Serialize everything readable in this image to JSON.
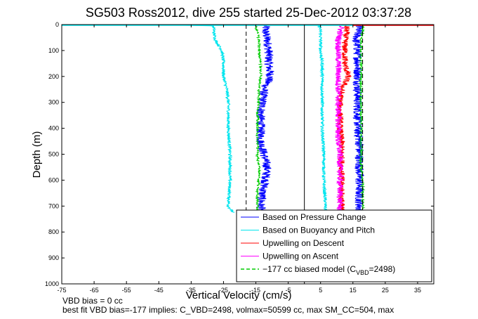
{
  "chart_data": {
    "type": "line",
    "title": "SG503 Ross2012, dive 255 started 25-Dec-2012 03:37:28",
    "xlabel": "Vertical Velocity (cm/s)",
    "ylabel": "Depth (m)",
    "xlim": [
      -75,
      40
    ],
    "ylim": [
      0,
      1000
    ],
    "y_reversed": true,
    "xticks": [
      "-75",
      "-65",
      "-55",
      "-45",
      "-35",
      "-25",
      "-15",
      "-5",
      "5",
      "15",
      "25",
      "35"
    ],
    "yticks": [
      "0",
      "100",
      "200",
      "300",
      "400",
      "500",
      "600",
      "700",
      "800",
      "900",
      "1000"
    ],
    "grid": false,
    "legend_position": "bottom-right",
    "legend": [
      {
        "label": "Based on Pressure Change",
        "color": "#0000ff",
        "style": "solid"
      },
      {
        "label": "Based on Buoyancy and Pitch",
        "color": "#00e5ee",
        "style": "solid"
      },
      {
        "label": "Upwelling on Descent",
        "color": "#ff0000",
        "style": "solid"
      },
      {
        "label": "Upwelling on Ascent",
        "color": "#ff00ff",
        "style": "solid"
      },
      {
        "label_pre": "−177 cc biased model (C",
        "label_sub": "VBD",
        "label_post": "=2498)",
        "color": "#00cc00",
        "style": "dashed"
      }
    ],
    "vertical_lines": [
      {
        "x": -18,
        "style": "dashed",
        "color": "#000000"
      },
      {
        "x": 0,
        "style": "solid",
        "color": "#000000"
      },
      {
        "x": 18,
        "style": "dashed",
        "color": "#000000"
      }
    ],
    "series": [
      {
        "name": "Based on Pressure Change",
        "color": "#0000ff",
        "noise": 1.4,
        "depth": [
          5,
          30,
          60,
          100,
          150,
          200,
          250,
          300,
          350,
          400,
          450,
          500,
          550,
          600,
          650,
          700,
          720
        ],
        "descent": [
          -12,
          -12,
          -11.5,
          -11,
          -11,
          -10.5,
          -12.5,
          -13,
          -13.5,
          -13.5,
          -13.5,
          -12.5,
          -11.5,
          -12,
          -13,
          -13.5,
          -13
        ],
        "ascent": [
          17,
          16.5,
          16,
          16.5,
          16.5,
          16.5,
          16.5,
          16.5,
          16.5,
          16.5,
          17,
          17,
          17,
          17,
          17,
          17,
          17
        ]
      },
      {
        "name": "Based on Buoyancy and Pitch",
        "color": "#00e5ee",
        "noise": 0.5,
        "depth": [
          0,
          2,
          5,
          10,
          30,
          60,
          100,
          150,
          200,
          250,
          300,
          400,
          500,
          600,
          700,
          725
        ],
        "descent": [
          -75,
          -40,
          -28.5,
          -28,
          -28,
          -27.5,
          -25.5,
          -25,
          -25,
          -24,
          -23.5,
          -23.5,
          -23,
          -23,
          -23.5,
          -22
        ],
        "ascent": [
          5,
          5,
          4.5,
          4.8,
          5,
          5,
          5,
          5.5,
          5.5,
          5.5,
          5.5,
          5.5,
          6,
          6,
          6.5,
          6.5
        ]
      },
      {
        "name": "Upwelling on Descent",
        "color": "#ff0000",
        "noise": 1.0,
        "depth": [
          5,
          30,
          60,
          100,
          150,
          200,
          250,
          300,
          350,
          400,
          450,
          500,
          550,
          600,
          650,
          700,
          720
        ],
        "values": [
          13,
          13,
          12.5,
          12.5,
          12.5,
          13.5,
          11.5,
          11,
          11,
          11,
          11.5,
          11.5,
          11.5,
          11.5,
          11.5,
          11.5,
          11.5
        ]
      },
      {
        "name": "Upwelling on Ascent",
        "color": "#ff00ff",
        "noise": 1.0,
        "depth": [
          5,
          30,
          60,
          100,
          150,
          200,
          250,
          300,
          350,
          400,
          450,
          500,
          550,
          600,
          650,
          700,
          720
        ],
        "values": [
          11.5,
          11,
          10.5,
          10.5,
          10.5,
          10.5,
          10.5,
          10.5,
          10.5,
          10.5,
          10.5,
          11,
          11,
          11,
          11,
          11,
          11
        ]
      },
      {
        "name": "−177 cc biased model (CVBD=2498)",
        "color": "#00cc00",
        "noise": 0.35,
        "style": "dashed",
        "depth": [
          0,
          30,
          60,
          100,
          150,
          200,
          250,
          300,
          350,
          400,
          450,
          500,
          550,
          600,
          650,
          700,
          720
        ],
        "descent": [
          -15,
          -14.5,
          -14,
          -14,
          -13.5,
          -13.5,
          -14,
          -14,
          -14.5,
          -14.5,
          -14.5,
          -14.5,
          -14,
          -14,
          -14.5,
          -14.5,
          -14.5
        ],
        "ascent": [
          18,
          18,
          17.5,
          17.5,
          17.5,
          17.5,
          17.5,
          17.5,
          17.5,
          17.5,
          17.5,
          17.5,
          17.5,
          18,
          18,
          18,
          18
        ]
      }
    ],
    "surface_spike": {
      "color": "#ff0000",
      "x_start": 15,
      "x_end": 40,
      "depth": 0
    }
  },
  "footer": {
    "line1": "VBD bias = 0 cc",
    "line2": "best fit VBD bias=-177 implies: C_VBD=2498, volmax=50599 cc, max SM_CC=504, max"
  }
}
